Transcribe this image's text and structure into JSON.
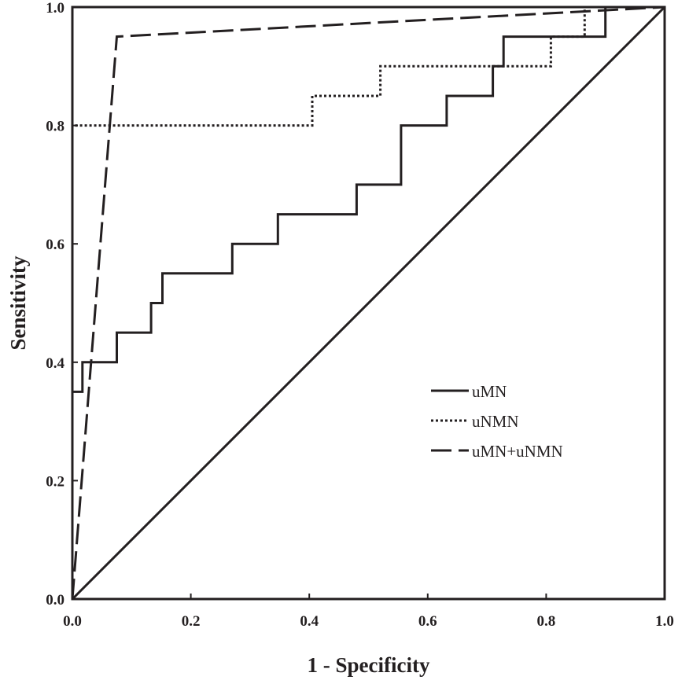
{
  "chart_data": {
    "type": "line",
    "title": "",
    "xlabel": "1 - Specificity",
    "ylabel": "Sensitivity",
    "xlim": [
      0,
      1
    ],
    "ylim": [
      0,
      1
    ],
    "xticks": [
      "0.0",
      "0.2",
      "0.4",
      "0.6",
      "0.8",
      "1.0"
    ],
    "yticks": [
      "0.0",
      "0.2",
      "0.4",
      "0.6",
      "0.8",
      "1.0"
    ],
    "grid": false,
    "legend_position": "bottom-right",
    "line_color": "#231f20",
    "series": [
      {
        "name": "uMN",
        "style": "solid",
        "x": [
          0.0,
          0.0,
          0.0,
          0.017,
          0.017,
          0.036,
          0.036,
          0.075,
          0.075,
          0.133,
          0.133,
          0.152,
          0.152,
          0.27,
          0.27,
          0.347,
          0.347,
          0.462,
          0.462,
          0.48,
          0.48,
          0.555,
          0.555,
          0.632,
          0.632,
          0.71,
          0.71,
          0.728,
          0.728,
          0.9,
          0.9,
          1.0
        ],
        "y": [
          0.0,
          0.35,
          0.35,
          0.35,
          0.4,
          0.4,
          0.4,
          0.4,
          0.45,
          0.45,
          0.5,
          0.5,
          0.55,
          0.55,
          0.6,
          0.6,
          0.65,
          0.65,
          0.65,
          0.65,
          0.7,
          0.7,
          0.8,
          0.8,
          0.85,
          0.85,
          0.9,
          0.9,
          0.95,
          0.95,
          1.0,
          1.0
        ]
      },
      {
        "name": "uNMN",
        "style": "dotted",
        "x": [
          0.0,
          0.0,
          0.405,
          0.405,
          0.52,
          0.52,
          0.808,
          0.808,
          0.865,
          0.865,
          1.0
        ],
        "y": [
          0.0,
          0.8,
          0.8,
          0.85,
          0.85,
          0.9,
          0.9,
          0.95,
          0.95,
          1.0,
          1.0
        ],
        "steps": true
      },
      {
        "name": "uMN+uNMN",
        "style": "dashed",
        "x": [
          0.0,
          0.075,
          1.0
        ],
        "y": [
          0.0,
          0.95,
          1.0
        ]
      },
      {
        "name": "reference",
        "style": "solid",
        "x": [
          0.0,
          1.0
        ],
        "y": [
          0.0,
          1.0
        ]
      }
    ]
  }
}
